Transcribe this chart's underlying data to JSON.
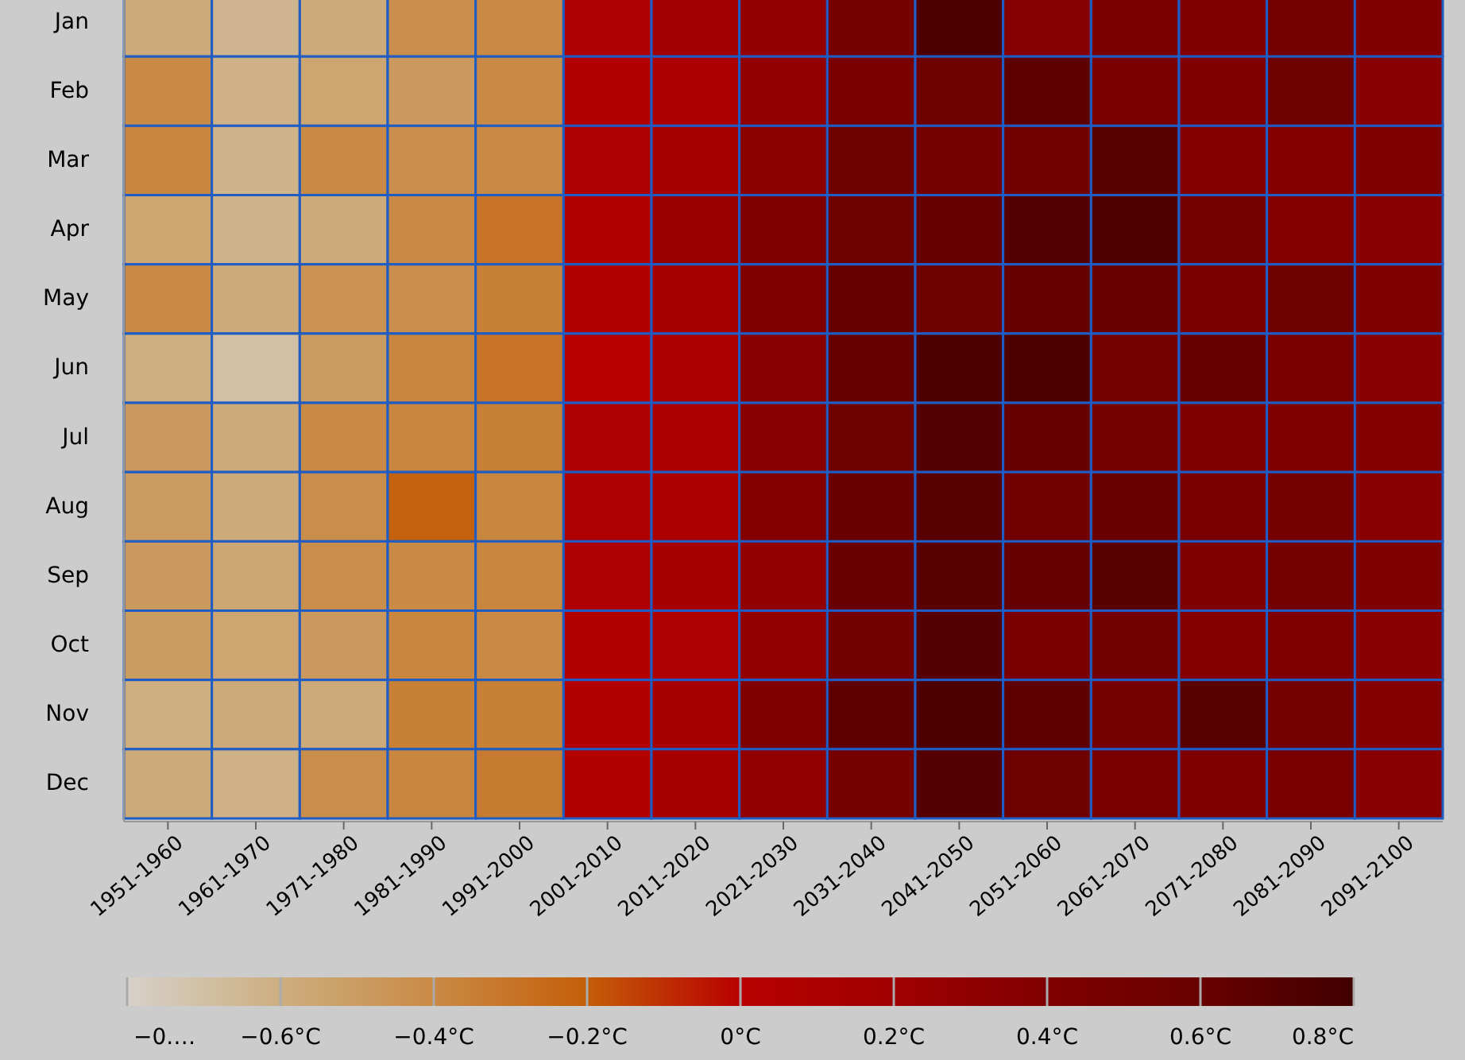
{
  "chart_data": {
    "type": "heatmap",
    "categories": [
      "1951-1960",
      "1961-1970",
      "1971-1980",
      "1981-1990",
      "1991-2000",
      "2001-2010",
      "2011-2020",
      "2021-2030",
      "2031-2040",
      "2041-2050",
      "2051-2060",
      "2061-2070",
      "2071-2080",
      "2081-2090",
      "2091-2100"
    ],
    "y_categories": [
      "Jan",
      "Feb",
      "Mar",
      "Apr",
      "May",
      "Jun",
      "Jul",
      "Aug",
      "Sep",
      "Oct",
      "Nov",
      "Dec"
    ],
    "cells": [
      [
        -0.58,
        -0.64,
        -0.58,
        -0.42,
        -0.4,
        0.08,
        0.2,
        0.28,
        0.5,
        0.75,
        0.37,
        0.45,
        0.4,
        0.5,
        0.4
      ],
      [
        -0.4,
        -0.62,
        -0.55,
        -0.48,
        -0.4,
        0.05,
        0.1,
        0.28,
        0.45,
        0.55,
        0.65,
        0.45,
        0.4,
        0.55,
        0.35
      ],
      [
        -0.38,
        -0.63,
        -0.4,
        -0.42,
        -0.4,
        0.08,
        0.15,
        0.32,
        0.55,
        0.5,
        0.52,
        0.68,
        0.38,
        0.38,
        0.42
      ],
      [
        -0.55,
        -0.63,
        -0.58,
        -0.4,
        -0.3,
        0.05,
        0.25,
        0.4,
        0.55,
        0.62,
        0.7,
        0.72,
        0.48,
        0.38,
        0.35
      ],
      [
        -0.4,
        -0.58,
        -0.45,
        -0.42,
        -0.35,
        0.05,
        0.15,
        0.4,
        0.62,
        0.55,
        0.62,
        0.6,
        0.45,
        0.55,
        0.42
      ],
      [
        -0.6,
        -0.7,
        -0.5,
        -0.38,
        -0.3,
        0.0,
        0.1,
        0.35,
        0.62,
        0.75,
        0.75,
        0.5,
        0.62,
        0.45,
        0.35
      ],
      [
        -0.48,
        -0.58,
        -0.4,
        -0.38,
        -0.35,
        0.08,
        0.1,
        0.35,
        0.55,
        0.7,
        0.62,
        0.5,
        0.42,
        0.42,
        0.38
      ],
      [
        -0.5,
        -0.58,
        -0.42,
        -0.22,
        -0.38,
        0.08,
        0.1,
        0.38,
        0.6,
        0.68,
        0.52,
        0.6,
        0.45,
        0.5,
        0.35
      ],
      [
        -0.48,
        -0.56,
        -0.42,
        -0.4,
        -0.38,
        0.08,
        0.15,
        0.28,
        0.6,
        0.68,
        0.62,
        0.68,
        0.42,
        0.5,
        0.42
      ],
      [
        -0.5,
        -0.55,
        -0.48,
        -0.38,
        -0.4,
        0.05,
        0.08,
        0.28,
        0.52,
        0.7,
        0.45,
        0.52,
        0.38,
        0.42,
        0.35
      ],
      [
        -0.6,
        -0.58,
        -0.58,
        -0.35,
        -0.35,
        0.05,
        0.15,
        0.4,
        0.65,
        0.75,
        0.65,
        0.48,
        0.68,
        0.5,
        0.38
      ],
      [
        -0.58,
        -0.62,
        -0.42,
        -0.38,
        -0.33,
        0.05,
        0.15,
        0.28,
        0.5,
        0.7,
        0.55,
        0.45,
        0.42,
        0.45,
        0.35
      ]
    ],
    "clim": [
      -0.8,
      0.8
    ],
    "cticks": [
      {
        "value": -0.8,
        "label": "−0.…"
      },
      {
        "value": -0.6,
        "label": "−0.6°C"
      },
      {
        "value": -0.4,
        "label": "−0.4°C"
      },
      {
        "value": -0.2,
        "label": "−0.2°C"
      },
      {
        "value": 0,
        "label": "0°C"
      },
      {
        "value": 0.2,
        "label": "0.2°C"
      },
      {
        "value": 0.4,
        "label": "0.4°C"
      },
      {
        "value": 0.6,
        "label": "0.6°C"
      },
      {
        "value": 0.8,
        "label": "0.8°C"
      }
    ]
  }
}
